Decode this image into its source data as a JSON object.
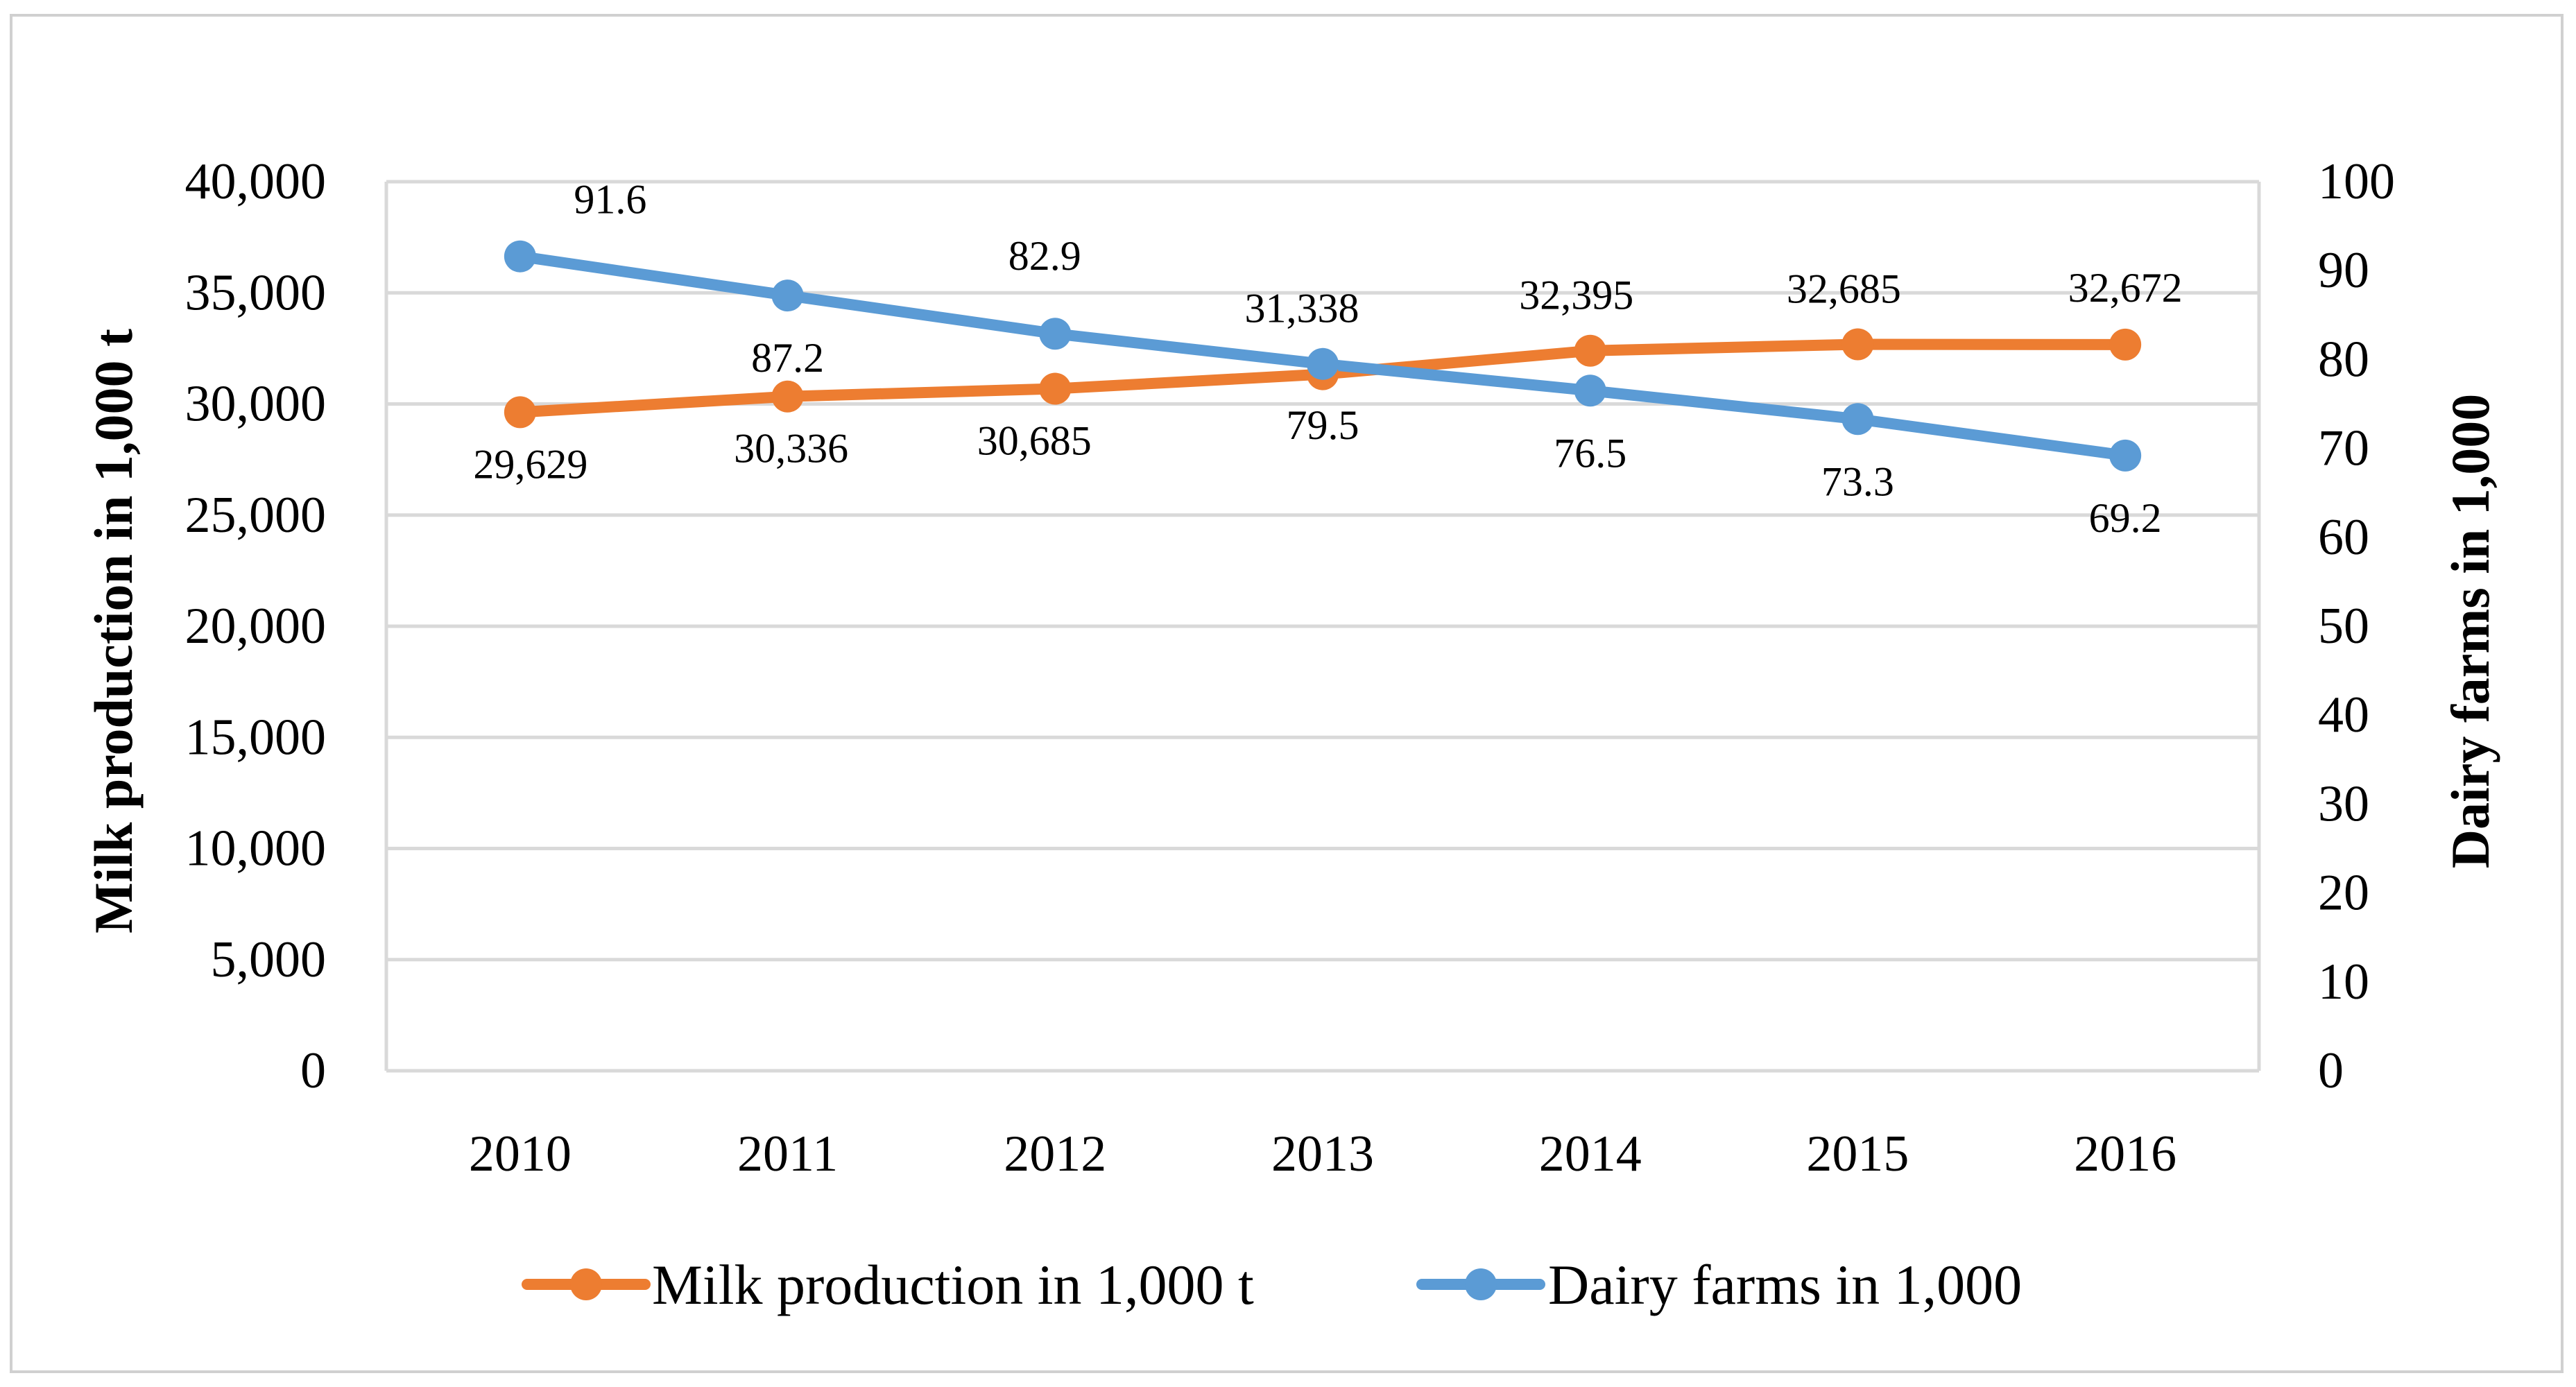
{
  "chart_data": {
    "type": "line",
    "categories": [
      "2010",
      "2011",
      "2012",
      "2013",
      "2014",
      "2015",
      "2016"
    ],
    "series": [
      {
        "name": "Milk production in 1,000 t",
        "axis": "left",
        "color": "#ED7D31",
        "values": [
          29629,
          30336,
          30685,
          31338,
          32395,
          32685,
          32672
        ],
        "labels": [
          "29,629",
          "30,336",
          "30,685",
          "31,338",
          "32,395",
          "32,685",
          "32,672"
        ]
      },
      {
        "name": "Dairy farms in 1,000",
        "axis": "right",
        "color": "#5B9BD5",
        "values": [
          91.6,
          87.2,
          82.9,
          79.5,
          76.5,
          73.3,
          69.2
        ],
        "labels": [
          "91.6",
          "87.2",
          "82.9",
          "79.5",
          "76.5",
          "73.3",
          "69.2"
        ]
      }
    ],
    "y_left": {
      "label": "Milk production in 1,000 t",
      "range": [
        0,
        40000
      ],
      "ticks": [
        "0",
        "5,000",
        "10,000",
        "15,000",
        "20,000",
        "25,000",
        "30,000",
        "35,000",
        "40,000"
      ]
    },
    "y_right": {
      "label": "Dairy farms in 1,000",
      "range": [
        0,
        100
      ],
      "ticks": [
        "0",
        "10",
        "20",
        "30",
        "40",
        "50",
        "60",
        "70",
        "80",
        "90",
        "100"
      ]
    },
    "grid": true,
    "legend": "bottom"
  }
}
